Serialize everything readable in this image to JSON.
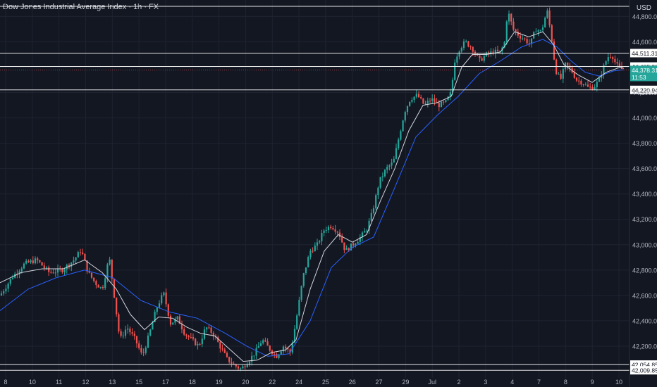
{
  "header": {
    "title": "Dow Jones Industrial Average Index · 1h · FX",
    "currency": "USD"
  },
  "colors": {
    "background": "#131722",
    "up": "#26a69a",
    "down": "#ef5350",
    "ma_fast": "#d1d4dc",
    "ma_slow": "#2962ff",
    "last_price_bg": "#26a69a",
    "grid": "#1f2330",
    "axis_text": "#b2b5be"
  },
  "chart_data": {
    "type": "candlestick",
    "ylim": [
      41950,
      44930
    ],
    "y_ticks": [
      42200,
      42400,
      42600,
      42800,
      43000,
      43200,
      43400,
      43600,
      43800,
      44000,
      44200,
      44400,
      44600,
      44800
    ],
    "y_tick_labels": [
      "42,200.00",
      "42,400.00",
      "42,600.00",
      "42,800.00",
      "43,000.00",
      "43,200.00",
      "43,400.00",
      "43,600.00",
      "43,800.00",
      "44,000.00",
      "44,200.00",
      "44,400.00",
      "44,600.00",
      "44,800.00"
    ],
    "x_tick_labels": [
      "8",
      "10",
      "11",
      "12",
      "13",
      "15",
      "17",
      "18",
      "19",
      "20",
      "22",
      "24",
      "25",
      "26",
      "27",
      "29",
      "Jul",
      "2",
      "3",
      "4",
      "7",
      "8",
      "9",
      "10"
    ],
    "horizontal_levels": [
      {
        "label": "44,880.00",
        "value": 44880,
        "show_label": false
      },
      {
        "label": "44,511.31",
        "value": 44511.31,
        "show_label": true
      },
      {
        "label": "44,405.38",
        "value": 44405.38,
        "show_label": true
      },
      {
        "label": "44,220.94",
        "value": 44220.94,
        "show_label": true
      },
      {
        "label": "42,054.85",
        "value": 42054.85,
        "show_label": true
      },
      {
        "label": "42,009.85",
        "value": 42009.85,
        "show_label": true
      }
    ],
    "last_price": {
      "value": 44378.31,
      "label": "44,378.31",
      "countdown": "11:53"
    },
    "close_path": [
      [
        0,
        42600
      ],
      [
        18,
        42750
      ],
      [
        35,
        42850
      ],
      [
        52,
        42880
      ],
      [
        70,
        42780
      ],
      [
        88,
        42800
      ],
      [
        105,
        42880
      ],
      [
        115,
        42960
      ],
      [
        125,
        42780
      ],
      [
        135,
        42700
      ],
      [
        145,
        42650
      ],
      [
        155,
        42900
      ],
      [
        162,
        42600
      ],
      [
        170,
        42250
      ],
      [
        180,
        42350
      ],
      [
        192,
        42250
      ],
      [
        202,
        42120
      ],
      [
        212,
        42300
      ],
      [
        222,
        42500
      ],
      [
        232,
        42620
      ],
      [
        242,
        42380
      ],
      [
        252,
        42420
      ],
      [
        262,
        42300
      ],
      [
        272,
        42250
      ],
      [
        282,
        42200
      ],
      [
        292,
        42350
      ],
      [
        302,
        42300
      ],
      [
        312,
        42200
      ],
      [
        322,
        42100
      ],
      [
        332,
        42050
      ],
      [
        342,
        42020
      ],
      [
        352,
        42080
      ],
      [
        362,
        42150
      ],
      [
        372,
        42250
      ],
      [
        382,
        42180
      ],
      [
        392,
        42120
      ],
      [
        402,
        42200
      ],
      [
        412,
        42150
      ],
      [
        420,
        42400
      ],
      [
        430,
        42750
      ],
      [
        440,
        42950
      ],
      [
        450,
        43000
      ],
      [
        460,
        43120
      ],
      [
        470,
        43150
      ],
      [
        480,
        43100
      ],
      [
        490,
        42950
      ],
      [
        500,
        43000
      ],
      [
        510,
        43050
      ],
      [
        520,
        43120
      ],
      [
        528,
        43250
      ],
      [
        538,
        43500
      ],
      [
        548,
        43600
      ],
      [
        558,
        43650
      ],
      [
        566,
        43850
      ],
      [
        574,
        44050
      ],
      [
        582,
        44150
      ],
      [
        592,
        44180
      ],
      [
        602,
        44100
      ],
      [
        612,
        44150
      ],
      [
        622,
        44100
      ],
      [
        632,
        44120
      ],
      [
        640,
        44200
      ],
      [
        645,
        44450
      ],
      [
        652,
        44550
      ],
      [
        660,
        44600
      ],
      [
        670,
        44550
      ],
      [
        680,
        44450
      ],
      [
        690,
        44500
      ],
      [
        700,
        44520
      ],
      [
        710,
        44520
      ],
      [
        716,
        44600
      ],
      [
        720,
        44850
      ],
      [
        728,
        44700
      ],
      [
        736,
        44650
      ],
      [
        744,
        44620
      ],
      [
        752,
        44580
      ],
      [
        760,
        44700
      ],
      [
        768,
        44680
      ],
      [
        776,
        44850
      ],
      [
        782,
        44650
      ],
      [
        788,
        44380
      ],
      [
        795,
        44300
      ],
      [
        802,
        44420
      ],
      [
        810,
        44380
      ],
      [
        818,
        44300
      ],
      [
        826,
        44280
      ],
      [
        834,
        44240
      ],
      [
        842,
        44240
      ],
      [
        850,
        44300
      ],
      [
        856,
        44400
      ],
      [
        862,
        44480
      ],
      [
        868,
        44500
      ],
      [
        874,
        44420
      ],
      [
        880,
        44390
      ],
      [
        885,
        44378.31
      ]
    ],
    "ma_fast_path": [
      [
        0,
        42700
      ],
      [
        30,
        42780
      ],
      [
        60,
        42810
      ],
      [
        90,
        42810
      ],
      [
        120,
        42880
      ],
      [
        145,
        42780
      ],
      [
        165,
        42650
      ],
      [
        185,
        42450
      ],
      [
        205,
        42330
      ],
      [
        225,
        42430
      ],
      [
        245,
        42420
      ],
      [
        265,
        42350
      ],
      [
        285,
        42300
      ],
      [
        305,
        42280
      ],
      [
        325,
        42180
      ],
      [
        345,
        42080
      ],
      [
        365,
        42090
      ],
      [
        385,
        42150
      ],
      [
        405,
        42170
      ],
      [
        420,
        42250
      ],
      [
        440,
        42650
      ],
      [
        460,
        42950
      ],
      [
        480,
        43080
      ],
      [
        500,
        43020
      ],
      [
        520,
        43080
      ],
      [
        540,
        43350
      ],
      [
        560,
        43600
      ],
      [
        580,
        43900
      ],
      [
        600,
        44100
      ],
      [
        620,
        44120
      ],
      [
        640,
        44170
      ],
      [
        655,
        44400
      ],
      [
        670,
        44500
      ],
      [
        690,
        44500
      ],
      [
        710,
        44520
      ],
      [
        730,
        44680
      ],
      [
        750,
        44640
      ],
      [
        770,
        44680
      ],
      [
        785,
        44580
      ],
      [
        800,
        44420
      ],
      [
        820,
        44340
      ],
      [
        840,
        44280
      ],
      [
        860,
        44360
      ],
      [
        880,
        44400
      ],
      [
        885,
        44390
      ]
    ],
    "ma_slow_path": [
      [
        0,
        42480
      ],
      [
        40,
        42650
      ],
      [
        80,
        42740
      ],
      [
        120,
        42800
      ],
      [
        160,
        42740
      ],
      [
        200,
        42560
      ],
      [
        240,
        42470
      ],
      [
        280,
        42420
      ],
      [
        320,
        42300
      ],
      [
        350,
        42200
      ],
      [
        380,
        42120
      ],
      [
        410,
        42140
      ],
      [
        440,
        42400
      ],
      [
        470,
        42820
      ],
      [
        500,
        42980
      ],
      [
        530,
        43060
      ],
      [
        560,
        43450
      ],
      [
        590,
        43850
      ],
      [
        620,
        44020
      ],
      [
        650,
        44170
      ],
      [
        680,
        44350
      ],
      [
        710,
        44450
      ],
      [
        740,
        44560
      ],
      [
        770,
        44620
      ],
      [
        790,
        44560
      ],
      [
        810,
        44450
      ],
      [
        830,
        44360
      ],
      [
        850,
        44330
      ],
      [
        870,
        44370
      ],
      [
        885,
        44380
      ]
    ],
    "random_seed": 7
  }
}
